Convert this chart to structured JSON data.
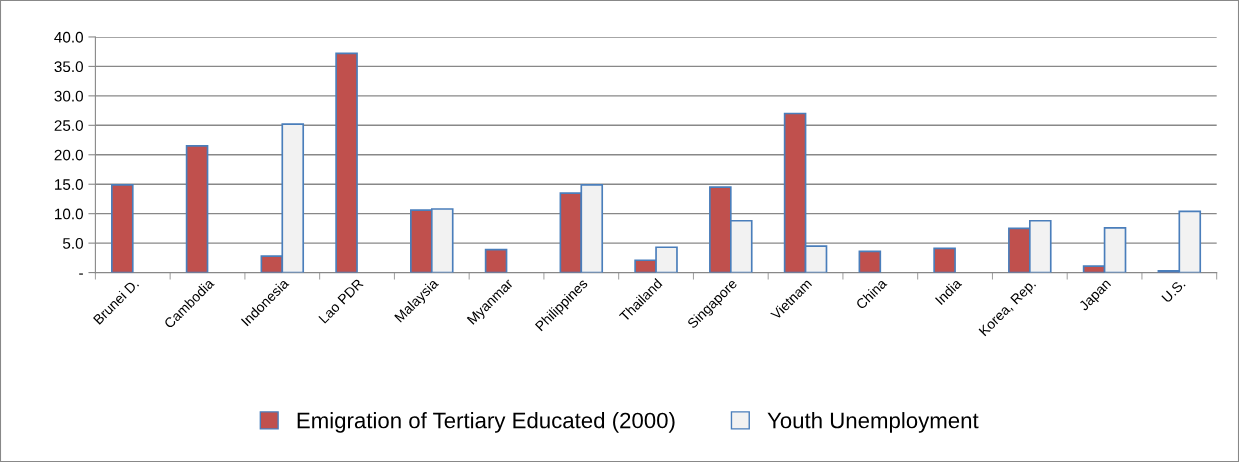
{
  "chart_data": {
    "type": "bar",
    "categories": [
      "Brunei D.",
      "Cambodia",
      "Indonesia",
      "Lao PDR",
      "Malaysia",
      "Myanmar",
      "Philippines",
      "Thailand",
      "Singapore",
      "Vietnam",
      "China",
      "India",
      "Korea, Rep.",
      "Japan",
      "U.S."
    ],
    "series": [
      {
        "name": "Emigration of Tertiary Educated (2000)",
        "color": "#c0504d",
        "values": [
          14.9,
          21.5,
          2.8,
          37.2,
          10.6,
          3.9,
          13.5,
          2.1,
          14.5,
          27.0,
          3.6,
          4.1,
          7.5,
          1.1,
          0.3
        ]
      },
      {
        "name": "Youth Unemployment",
        "color": "#f2f2f2",
        "values": [
          null,
          null,
          25.2,
          null,
          10.8,
          null,
          14.9,
          4.3,
          8.8,
          4.5,
          null,
          null,
          8.8,
          7.6,
          10.4
        ]
      }
    ],
    "ylim": [
      0,
      40
    ],
    "yticks": [
      {
        "value": 0,
        "label": "-"
      },
      {
        "value": 5,
        "label": "5.0"
      },
      {
        "value": 10,
        "label": "10.0"
      },
      {
        "value": 15,
        "label": "15.0"
      },
      {
        "value": 20,
        "label": "20.0"
      },
      {
        "value": 25,
        "label": "25.0"
      },
      {
        "value": 30,
        "label": "30.0"
      },
      {
        "value": 35,
        "label": "35.0"
      },
      {
        "value": 40,
        "label": "40.0"
      }
    ],
    "grid": "y",
    "legend": "bottom"
  }
}
